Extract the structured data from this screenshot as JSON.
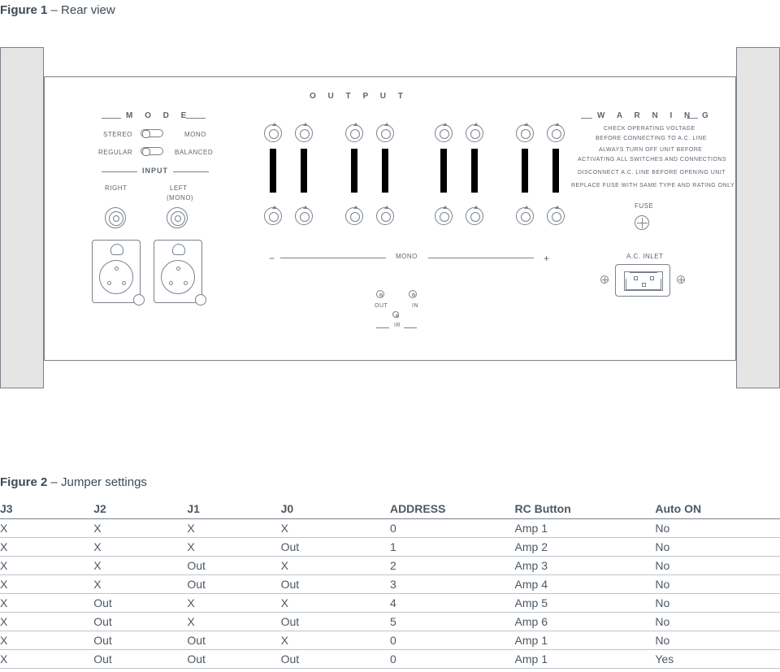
{
  "figure1": {
    "title_strong": "Figure 1",
    "title_rest": " – Rear view",
    "labels": {
      "output": "O   U   T   P   U   T",
      "mode": "M  O  D  E",
      "stereo": "STEREO",
      "mono": "MONO",
      "regular": "REGULAR",
      "balanced": "BALANCED",
      "input": "INPUT",
      "right": "RIGHT",
      "left": "LEFT",
      "left_mono": "(MONO)",
      "warning": "W  A  R  N  I  N  G",
      "warn1": "CHECK OPERATING VOLTAGE",
      "warn2": "BEFORE CONNECTING TO A.C. LINE",
      "warn3": "ALWAYS TURN OFF UNIT BEFORE",
      "warn4": "ACTIVATING ALL SWITCHES AND CONNECTIONS",
      "warn5": "DISCONNECT A.C. LINE BEFORE OPENING UNIT",
      "warn6": "REPLACE FUSE WITH SAME TYPE AND RATING ONLY",
      "fuse": "FUSE",
      "ac_inlet": "A.C. INLET",
      "mono_out": "MONO",
      "minus": "−",
      "plus": "+",
      "out": "OUT",
      "in": "IN",
      "ir": "IR"
    }
  },
  "figure2": {
    "title_strong": "Figure 2",
    "title_rest": " – Jumper settings",
    "columns": [
      "J3",
      "J2",
      "J1",
      "J0",
      "ADDRESS",
      "RC Button",
      "Auto ON"
    ],
    "rows": [
      [
        "X",
        "X",
        "X",
        "X",
        "0",
        "Amp 1",
        "No"
      ],
      [
        "X",
        "X",
        "X",
        "Out",
        "1",
        "Amp 2",
        "No"
      ],
      [
        "X",
        "X",
        "Out",
        "X",
        "2",
        "Amp 3",
        "No"
      ],
      [
        "X",
        "X",
        "Out",
        "Out",
        "3",
        "Amp 4",
        "No"
      ],
      [
        "X",
        "Out",
        "X",
        "X",
        "4",
        "Amp 5",
        "No"
      ],
      [
        "X",
        "Out",
        "X",
        "Out",
        "5",
        "Amp 6",
        "No"
      ],
      [
        "X",
        "Out",
        "Out",
        "X",
        "0",
        "Amp 1",
        "No"
      ],
      [
        "X",
        "Out",
        "Out",
        "Out",
        "0",
        "Amp 1",
        "Yes"
      ]
    ]
  },
  "style": {
    "text_color": "#4d5864",
    "line_color": "#7a828c",
    "ear_fill": "#e5e5e5",
    "bg": "#ffffff"
  }
}
